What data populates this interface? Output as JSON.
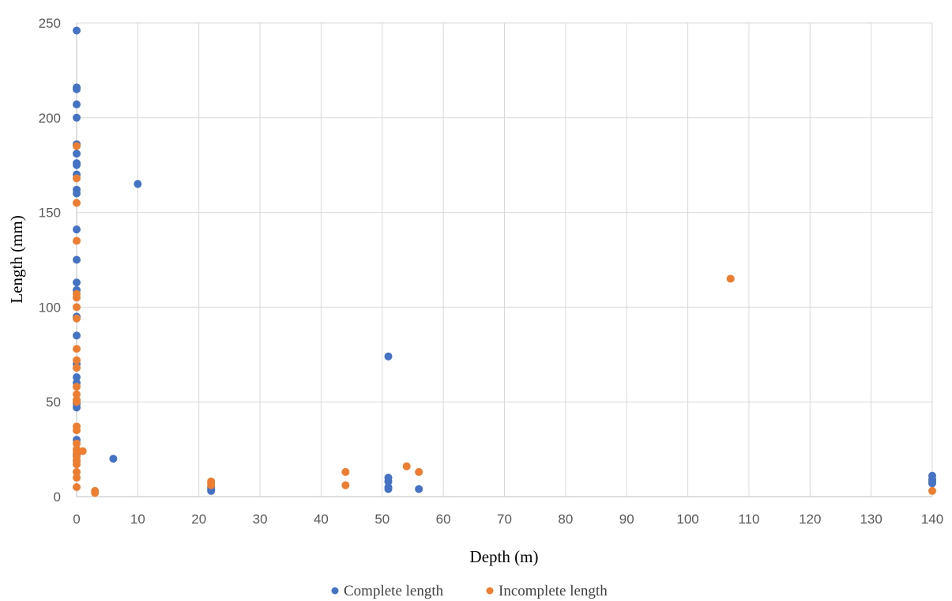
{
  "chart_data": {
    "type": "scatter",
    "title": "",
    "xlabel": "Depth (m)",
    "ylabel": "Length (mm)",
    "xlim": [
      0,
      140
    ],
    "ylim": [
      0,
      250
    ],
    "xticks": [
      0,
      10,
      20,
      30,
      40,
      50,
      60,
      70,
      80,
      90,
      100,
      110,
      120,
      130,
      140
    ],
    "yticks": [
      0,
      50,
      100,
      150,
      200,
      250
    ],
    "grid": true,
    "legend_position": "bottom",
    "series": [
      {
        "name": "Complete length",
        "color": "#4472c4",
        "points": [
          [
            0,
            246
          ],
          [
            0,
            216
          ],
          [
            0,
            215
          ],
          [
            0,
            207
          ],
          [
            0,
            200
          ],
          [
            0,
            186
          ],
          [
            0,
            181
          ],
          [
            0,
            176
          ],
          [
            0,
            175
          ],
          [
            0,
            170
          ],
          [
            0,
            162
          ],
          [
            0,
            160
          ],
          [
            0,
            141
          ],
          [
            0,
            125
          ],
          [
            0,
            113
          ],
          [
            0,
            109
          ],
          [
            0,
            95
          ],
          [
            0,
            85
          ],
          [
            0,
            70
          ],
          [
            0,
            63
          ],
          [
            0,
            60
          ],
          [
            0,
            49
          ],
          [
            0,
            47
          ],
          [
            0,
            30
          ],
          [
            0,
            22
          ],
          [
            0,
            19
          ],
          [
            10,
            165
          ],
          [
            6,
            20
          ],
          [
            22,
            4
          ],
          [
            22,
            3
          ],
          [
            22,
            5
          ],
          [
            51,
            74
          ],
          [
            51,
            10
          ],
          [
            51,
            8
          ],
          [
            51,
            5
          ],
          [
            51,
            4
          ],
          [
            56,
            4
          ],
          [
            140,
            11
          ],
          [
            140,
            9
          ],
          [
            140,
            8
          ],
          [
            140,
            7
          ]
        ]
      },
      {
        "name": "Incomplete length",
        "color": "#ed7d31",
        "points": [
          [
            0,
            185
          ],
          [
            0,
            168
          ],
          [
            0,
            155
          ],
          [
            0,
            135
          ],
          [
            0,
            107
          ],
          [
            0,
            105
          ],
          [
            0,
            100
          ],
          [
            0,
            94
          ],
          [
            0,
            78
          ],
          [
            0,
            72
          ],
          [
            0,
            68
          ],
          [
            0,
            58
          ],
          [
            0,
            54
          ],
          [
            0,
            51
          ],
          [
            0,
            50
          ],
          [
            0,
            37
          ],
          [
            0,
            35
          ],
          [
            0,
            28
          ],
          [
            0,
            25
          ],
          [
            0,
            23
          ],
          [
            0,
            21
          ],
          [
            0,
            19
          ],
          [
            0,
            17
          ],
          [
            0,
            13
          ],
          [
            0,
            10
          ],
          [
            0,
            5
          ],
          [
            1,
            24
          ],
          [
            3,
            3
          ],
          [
            3,
            2
          ],
          [
            22,
            8
          ],
          [
            22,
            7
          ],
          [
            22,
            6
          ],
          [
            44,
            13
          ],
          [
            44,
            6
          ],
          [
            54,
            16
          ],
          [
            56,
            13
          ],
          [
            107,
            115
          ],
          [
            140,
            3
          ]
        ]
      }
    ]
  }
}
